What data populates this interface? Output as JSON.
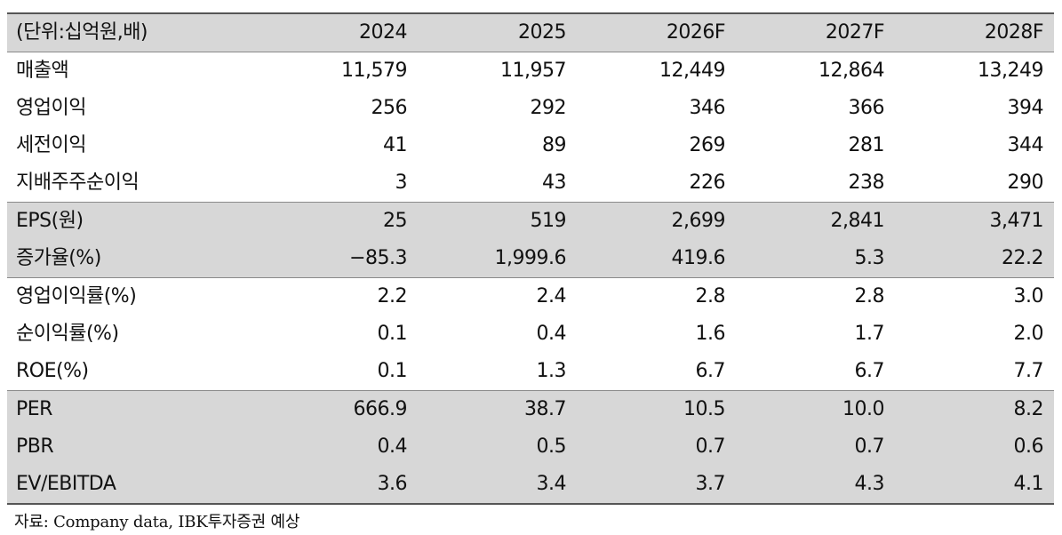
{
  "table": {
    "header": {
      "unit_label": "(단위:십억원,배)",
      "years": [
        "2024",
        "2025",
        "2026F",
        "2027F",
        "2028F"
      ]
    },
    "rows": [
      {
        "label": "매출액",
        "values": [
          "11,579",
          "11,957",
          "12,449",
          "12,864",
          "13,249"
        ]
      },
      {
        "label": "영업이익",
        "values": [
          "256",
          "292",
          "346",
          "366",
          "394"
        ]
      },
      {
        "label": "세전이익",
        "values": [
          "41",
          "89",
          "269",
          "281",
          "344"
        ]
      },
      {
        "label": "지배주주순이익",
        "values": [
          "3",
          "43",
          "226",
          "238",
          "290"
        ]
      },
      {
        "label": "EPS(원)",
        "values": [
          "25",
          "519",
          "2,699",
          "2,841",
          "3,471"
        ]
      },
      {
        "label": "증가율(%)",
        "values": [
          "−85.3",
          "1,999.6",
          "419.6",
          "5.3",
          "22.2"
        ]
      },
      {
        "label": "영업이익률(%)",
        "values": [
          "2.2",
          "2.4",
          "2.8",
          "2.8",
          "3.0"
        ]
      },
      {
        "label": "순이익률(%)",
        "values": [
          "0.1",
          "0.4",
          "1.6",
          "1.7",
          "2.0"
        ]
      },
      {
        "label": "ROE(%)",
        "values": [
          "0.1",
          "1.3",
          "6.7",
          "6.7",
          "7.7"
        ]
      },
      {
        "label": "PER",
        "values": [
          "666.9",
          "38.7",
          "10.5",
          "10.0",
          "8.2"
        ]
      },
      {
        "label": "PBR",
        "values": [
          "0.4",
          "0.5",
          "0.7",
          "0.7",
          "0.6"
        ]
      },
      {
        "label": "EV/EBITDA",
        "values": [
          "3.6",
          "3.4",
          "3.7",
          "4.3",
          "4.1"
        ]
      }
    ]
  },
  "source": "자료: Company data, IBK투자증권 예상",
  "colors": {
    "shade": "#d7d7d7",
    "rule_dark": "#555555",
    "rule_light": "#8a8a8a"
  }
}
